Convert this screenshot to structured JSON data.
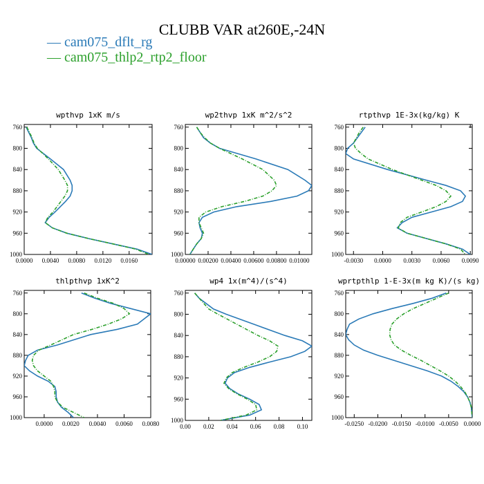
{
  "title": "CLUBB VAR at260E,-24N",
  "legend": [
    {
      "label": "— cam075_dflt_rg",
      "color": "#2a7ab7"
    },
    {
      "label": "— cam075_thlp2_rtp2_floor",
      "color": "#2ca02c"
    }
  ],
  "colors": {
    "series1": "#2a7ab7",
    "series2": "#2ca02c"
  },
  "chart_data": [
    {
      "type": "line",
      "title": "wpthvp   1xK m/s",
      "xlim": [
        0,
        0.0195
      ],
      "ylim": [
        1000,
        755
      ],
      "xticks": [
        0,
        0.004,
        0.008,
        0.012,
        0.016
      ],
      "xtick_labels": [
        "0.0000",
        "0.0040",
        "0.0080",
        "0.0120",
        "0.0160"
      ],
      "yticks": [
        760,
        800,
        840,
        880,
        920,
        960,
        1000
      ],
      "y": [
        760,
        770,
        780,
        790,
        800,
        820,
        840,
        860,
        870,
        880,
        890,
        900,
        910,
        920,
        930,
        940,
        950,
        960,
        970,
        980,
        990,
        1000
      ],
      "series": [
        {
          "name": "cam075_dflt_rg",
          "values": [
            0.0003,
            0.0007,
            0.0011,
            0.0014,
            0.0019,
            0.004,
            0.006,
            0.007,
            0.0073,
            0.0073,
            0.007,
            0.0063,
            0.0055,
            0.0047,
            0.0038,
            0.0032,
            0.0043,
            0.0065,
            0.0098,
            0.0135,
            0.0172,
            0.0195
          ]
        },
        {
          "name": "cam075_thlp2_rtp2_floor",
          "values": [
            0.0004,
            0.0008,
            0.0012,
            0.0015,
            0.002,
            0.0037,
            0.0052,
            0.0062,
            0.0066,
            0.0066,
            0.0062,
            0.0056,
            0.005,
            0.0044,
            0.0036,
            0.0032,
            0.0043,
            0.0065,
            0.0098,
            0.0135,
            0.017,
            0.019
          ]
        }
      ]
    },
    {
      "type": "line",
      "title": "wp2thvp   1xK m^2/s^2",
      "xlim": [
        0,
        0.0111
      ],
      "ylim": [
        1000,
        755
      ],
      "xticks": [
        0,
        0.002,
        0.004,
        0.006,
        0.008,
        0.01
      ],
      "xtick_labels": [
        "0.00000",
        "0.00200",
        "0.00400",
        "0.00600",
        "0.00800",
        "0.01000"
      ],
      "yticks": [
        760,
        800,
        840,
        880,
        920,
        960,
        1000
      ],
      "y": [
        760,
        770,
        780,
        790,
        800,
        820,
        840,
        860,
        870,
        880,
        890,
        900,
        910,
        920,
        930,
        940,
        950,
        960,
        970,
        980,
        990,
        1000
      ],
      "series": [
        {
          "name": "cam075_dflt_rg",
          "values": [
            0.001,
            0.0013,
            0.0016,
            0.0022,
            0.003,
            0.0062,
            0.009,
            0.0105,
            0.0111,
            0.0108,
            0.0098,
            0.0075,
            0.0045,
            0.0025,
            0.0015,
            0.0012,
            0.0013,
            0.0015,
            0.0014,
            0.001,
            0.0007,
            0.0004
          ]
        },
        {
          "name": "cam075_thlp2_rtp2_floor",
          "values": [
            0.001,
            0.0013,
            0.0017,
            0.0022,
            0.003,
            0.005,
            0.0068,
            0.0078,
            0.008,
            0.0076,
            0.0068,
            0.0052,
            0.0032,
            0.0018,
            0.0012,
            0.0012,
            0.0014,
            0.0016,
            0.0014,
            0.001,
            0.0007,
            0.0004
          ]
        }
      ]
    },
    {
      "type": "line",
      "title": "rtpthvp   1E-3x(kg/kg) K",
      "xlim": [
        -0.0038,
        0.0092
      ],
      "ylim": [
        1000,
        755
      ],
      "xticks": [
        -0.003,
        0,
        0.003,
        0.006,
        0.009
      ],
      "xtick_labels": [
        "-0.0030",
        "0.0000",
        "0.0030",
        "0.0060",
        "0.0090"
      ],
      "yticks": [
        760,
        800,
        840,
        880,
        920,
        960,
        1000
      ],
      "y": [
        760,
        770,
        780,
        790,
        800,
        810,
        820,
        840,
        860,
        870,
        880,
        890,
        900,
        910,
        920,
        930,
        940,
        950,
        960,
        970,
        980,
        990,
        1000
      ],
      "series": [
        {
          "name": "cam075_dflt_rg",
          "values": [
            -0.0018,
            -0.0022,
            -0.0026,
            -0.003,
            -0.0036,
            -0.0038,
            -0.003,
            0.0005,
            0.0045,
            0.0065,
            0.008,
            0.0085,
            0.0082,
            0.007,
            0.005,
            0.003,
            0.002,
            0.0015,
            0.0025,
            0.0045,
            0.0065,
            0.0082,
            0.009
          ]
        },
        {
          "name": "cam075_thlp2_rtp2_floor",
          "values": [
            -0.002,
            -0.0024,
            -0.0027,
            -0.003,
            -0.0028,
            -0.0022,
            -0.0015,
            0.001,
            0.004,
            0.0055,
            0.0065,
            0.007,
            0.0065,
            0.0055,
            0.004,
            0.0025,
            0.0018,
            0.0016,
            0.0025,
            0.0045,
            0.0065,
            0.008,
            0.0085
          ]
        }
      ]
    },
    {
      "type": "line",
      "title": "thlpthvp   1xK^2",
      "xlim": [
        -0.0015,
        0.008
      ],
      "ylim": [
        1000,
        755
      ],
      "xticks": [
        0,
        0.002,
        0.004,
        0.006,
        0.008
      ],
      "xtick_labels": [
        "0.0000",
        "0.0020",
        "0.0040",
        "0.0060",
        "0.0080"
      ],
      "yticks": [
        760,
        800,
        840,
        880,
        920,
        960,
        1000
      ],
      "y": [
        760,
        770,
        780,
        790,
        800,
        810,
        820,
        830,
        840,
        860,
        870,
        880,
        890,
        900,
        910,
        920,
        930,
        940,
        950,
        960,
        970,
        980,
        990,
        1000
      ],
      "series": [
        {
          "name": "cam075_dflt_rg",
          "values": [
            0.0028,
            0.0038,
            0.005,
            0.0065,
            0.008,
            0.0075,
            0.007,
            0.0055,
            0.0035,
            0.001,
            -0.0005,
            -0.0012,
            -0.0014,
            -0.0015,
            -0.0011,
            -0.0005,
            0.0003,
            0.0008,
            0.0009,
            0.0009,
            0.001,
            0.0013,
            0.0018,
            0.0022
          ]
        },
        {
          "name": "cam075_thlp2_rtp2_floor",
          "values": [
            0.003,
            0.004,
            0.0052,
            0.006,
            0.0064,
            0.0058,
            0.0048,
            0.0036,
            0.0022,
            0.0005,
            -0.0004,
            -0.0008,
            -0.0009,
            -0.0008,
            -0.0005,
            0.0,
            0.0005,
            0.0007,
            0.0008,
            0.0008,
            0.001,
            0.0014,
            0.0022,
            0.003
          ]
        }
      ]
    },
    {
      "type": "line",
      "title": "wp4   1x(m^4)/(s^4)",
      "xlim": [
        0,
        0.108
      ],
      "ylim": [
        1000,
        755
      ],
      "xticks": [
        0,
        0.02,
        0.04,
        0.06,
        0.08,
        0.1
      ],
      "xtick_labels": [
        "0.00",
        "0.02",
        "0.04",
        "0.06",
        "0.08",
        "0.10"
      ],
      "yticks": [
        760,
        800,
        840,
        880,
        920,
        960,
        1000
      ],
      "y": [
        760,
        770,
        780,
        790,
        800,
        820,
        840,
        850,
        860,
        870,
        880,
        890,
        900,
        910,
        920,
        930,
        940,
        950,
        960,
        970,
        980,
        990,
        1000
      ],
      "series": [
        {
          "name": "cam075_dflt_rg",
          "values": [
            0.008,
            0.012,
            0.018,
            0.024,
            0.035,
            0.06,
            0.085,
            0.1,
            0.108,
            0.102,
            0.09,
            0.072,
            0.055,
            0.042,
            0.036,
            0.034,
            0.038,
            0.045,
            0.055,
            0.063,
            0.065,
            0.055,
            0.03
          ]
        },
        {
          "name": "cam075_thlp2_rtp2_floor",
          "values": [
            0.008,
            0.012,
            0.016,
            0.02,
            0.028,
            0.045,
            0.062,
            0.072,
            0.079,
            0.078,
            0.072,
            0.062,
            0.05,
            0.04,
            0.035,
            0.033,
            0.037,
            0.044,
            0.053,
            0.06,
            0.061,
            0.052,
            0.03
          ]
        }
      ]
    },
    {
      "type": "line",
      "title": "wprtpthlp   1-E-3x(m kg K)/(s kg)",
      "xlim": [
        -0.0268,
        0
      ],
      "ylim": [
        1000,
        755
      ],
      "xticks": [
        -0.025,
        -0.02,
        -0.015,
        -0.01,
        -0.005,
        0
      ],
      "xtick_labels": [
        "-0.0250",
        "-0.0200",
        "-0.0150",
        "-0.0100",
        "-0.0050",
        "0.0000"
      ],
      "yticks": [
        760,
        800,
        840,
        880,
        920,
        960,
        1000
      ],
      "y": [
        760,
        770,
        780,
        790,
        800,
        810,
        820,
        830,
        840,
        850,
        860,
        870,
        880,
        890,
        900,
        910,
        920,
        930,
        940,
        950,
        960,
        970,
        980,
        990,
        1000
      ],
      "series": [
        {
          "name": "cam075_dflt_rg",
          "values": [
            -0.0055,
            -0.0085,
            -0.0125,
            -0.017,
            -0.021,
            -0.024,
            -0.026,
            -0.0265,
            -0.0268,
            -0.0262,
            -0.025,
            -0.023,
            -0.02,
            -0.0165,
            -0.013,
            -0.0095,
            -0.0065,
            -0.0045,
            -0.003,
            -0.0018,
            -0.001,
            -0.0005,
            -0.0002,
            -0.0001,
            0.0
          ]
        },
        {
          "name": "cam075_thlp2_rtp2_floor",
          "values": [
            -0.005,
            -0.0075,
            -0.01,
            -0.0125,
            -0.0145,
            -0.016,
            -0.017,
            -0.0174,
            -0.0175,
            -0.0172,
            -0.0165,
            -0.015,
            -0.013,
            -0.0108,
            -0.0088,
            -0.0068,
            -0.005,
            -0.0036,
            -0.0025,
            -0.0016,
            -0.001,
            -0.0005,
            -0.0002,
            -0.0001,
            0.0
          ]
        }
      ]
    }
  ]
}
